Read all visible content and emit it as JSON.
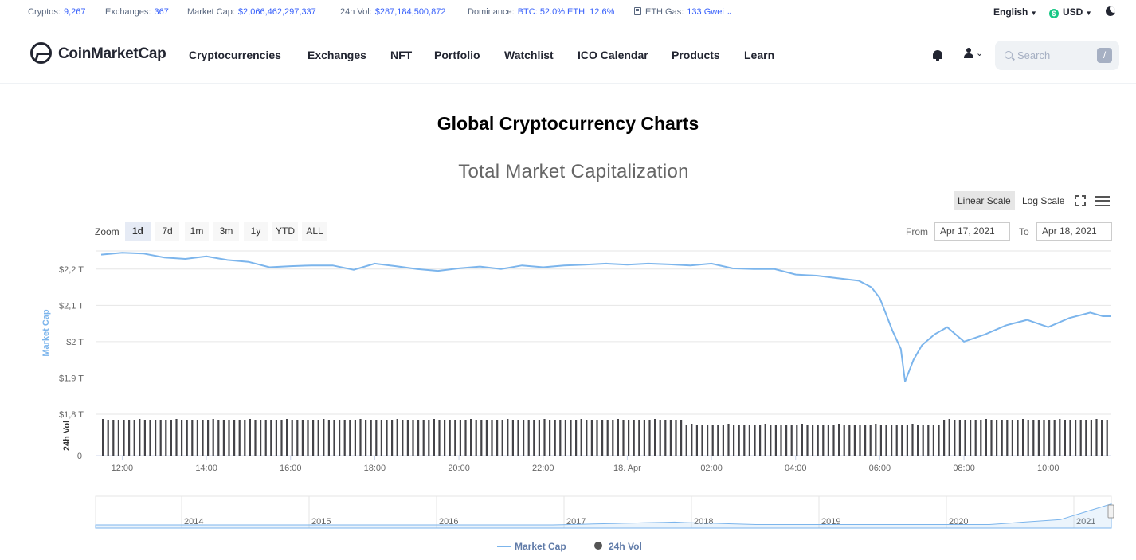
{
  "stats": {
    "cryptos_label": "Cryptos:",
    "cryptos_value": "9,267",
    "exchanges_label": "Exchanges:",
    "exchanges_value": "367",
    "marketcap_label": "Market Cap:",
    "marketcap_value": "$2,066,462,297,337",
    "vol_label": "24h Vol:",
    "vol_value": "$287,184,500,872",
    "dominance_label": "Dominance:",
    "dominance_value": "BTC: 52.0% ETH: 12.6%",
    "gas_label": "ETH Gas:",
    "gas_value": "133 Gwei"
  },
  "language": "English",
  "currency": "USD",
  "brand": "CoinMarketCap",
  "nav": [
    "Cryptocurrencies",
    "Exchanges",
    "NFT",
    "Portfolio",
    "Watchlist",
    "ICO Calendar",
    "Products",
    "Learn"
  ],
  "search": {
    "placeholder": "Search",
    "shortcut": "/"
  },
  "page_title": "Global Cryptocurrency Charts",
  "chart_title": "Total Market Capitalization",
  "scale": {
    "linear": "Linear Scale",
    "log": "Log Scale",
    "active": "linear"
  },
  "zoom": {
    "label": "Zoom",
    "options": [
      "1d",
      "7d",
      "1m",
      "3m",
      "1y",
      "YTD",
      "ALL"
    ],
    "active": "1d"
  },
  "range": {
    "from_label": "From",
    "from": "Apr 17, 2021",
    "to_label": "To",
    "to": "Apr 18, 2021"
  },
  "colors": {
    "line": "#7cb5ec",
    "bars": "#434348",
    "accent": "#3861fb",
    "up": "#16c784"
  },
  "chart_data": {
    "type": "line",
    "title": "Total Market Capitalization",
    "ylabel": "Market Cap",
    "ylabel2": "24h Vol",
    "ylim": [
      1.8,
      2.25
    ],
    "yticks": [
      "$1,8 T",
      "$1,9 T",
      "$2 T",
      "$2,1 T",
      "$2,2 T"
    ],
    "ytick_values": [
      1.8,
      1.9,
      2.0,
      2.1,
      2.2
    ],
    "vol_zero_label": "0",
    "xlim": [
      11.5,
      35.5
    ],
    "xticks": [
      "12:00",
      "14:00",
      "16:00",
      "18:00",
      "20:00",
      "22:00",
      "18. Apr",
      "02:00",
      "04:00",
      "06:00",
      "08:00",
      "10:00"
    ],
    "xtick_values": [
      12,
      14,
      16,
      18,
      20,
      22,
      24,
      26,
      28,
      30,
      32,
      34
    ],
    "series": [
      {
        "name": "Market Cap",
        "unit": "trillion USD",
        "x": [
          11.5,
          12.0,
          12.5,
          13.0,
          13.5,
          14.0,
          14.5,
          15.0,
          15.5,
          16.0,
          16.5,
          17.0,
          17.5,
          18.0,
          18.5,
          19.0,
          19.5,
          20.0,
          20.5,
          21.0,
          21.5,
          22.0,
          22.5,
          23.0,
          23.5,
          24.0,
          24.5,
          25.0,
          25.5,
          26.0,
          26.5,
          27.0,
          27.5,
          28.0,
          28.5,
          29.0,
          29.5,
          29.8,
          30.0,
          30.3,
          30.5,
          30.6,
          30.7,
          30.8,
          31.0,
          31.3,
          31.6,
          32.0,
          32.5,
          33.0,
          33.5,
          34.0,
          34.5,
          35.0,
          35.3,
          35.5
        ],
        "y": [
          2.24,
          2.245,
          2.243,
          2.232,
          2.228,
          2.235,
          2.225,
          2.22,
          2.205,
          2.208,
          2.21,
          2.21,
          2.198,
          2.215,
          2.208,
          2.2,
          2.195,
          2.202,
          2.207,
          2.2,
          2.21,
          2.205,
          2.21,
          2.212,
          2.215,
          2.212,
          2.215,
          2.213,
          2.21,
          2.215,
          2.202,
          2.2,
          2.2,
          2.185,
          2.182,
          2.175,
          2.168,
          2.15,
          2.12,
          2.03,
          1.98,
          1.89,
          1.92,
          1.95,
          1.99,
          2.02,
          2.04,
          2.0,
          2.02,
          2.045,
          2.06,
          2.04,
          2.065,
          2.08,
          2.07,
          2.07
        ]
      },
      {
        "name": "24h Vol",
        "unit": "relative",
        "values": "uniform hourly bars ~ similar height throughout"
      }
    ],
    "navigator": {
      "xticks": [
        "2014",
        "2015",
        "2016",
        "2017",
        "2018",
        "2019",
        "2020",
        "2021"
      ]
    },
    "legend": [
      "Market Cap",
      "24h Vol"
    ],
    "legend_placement": "bottom-center"
  }
}
